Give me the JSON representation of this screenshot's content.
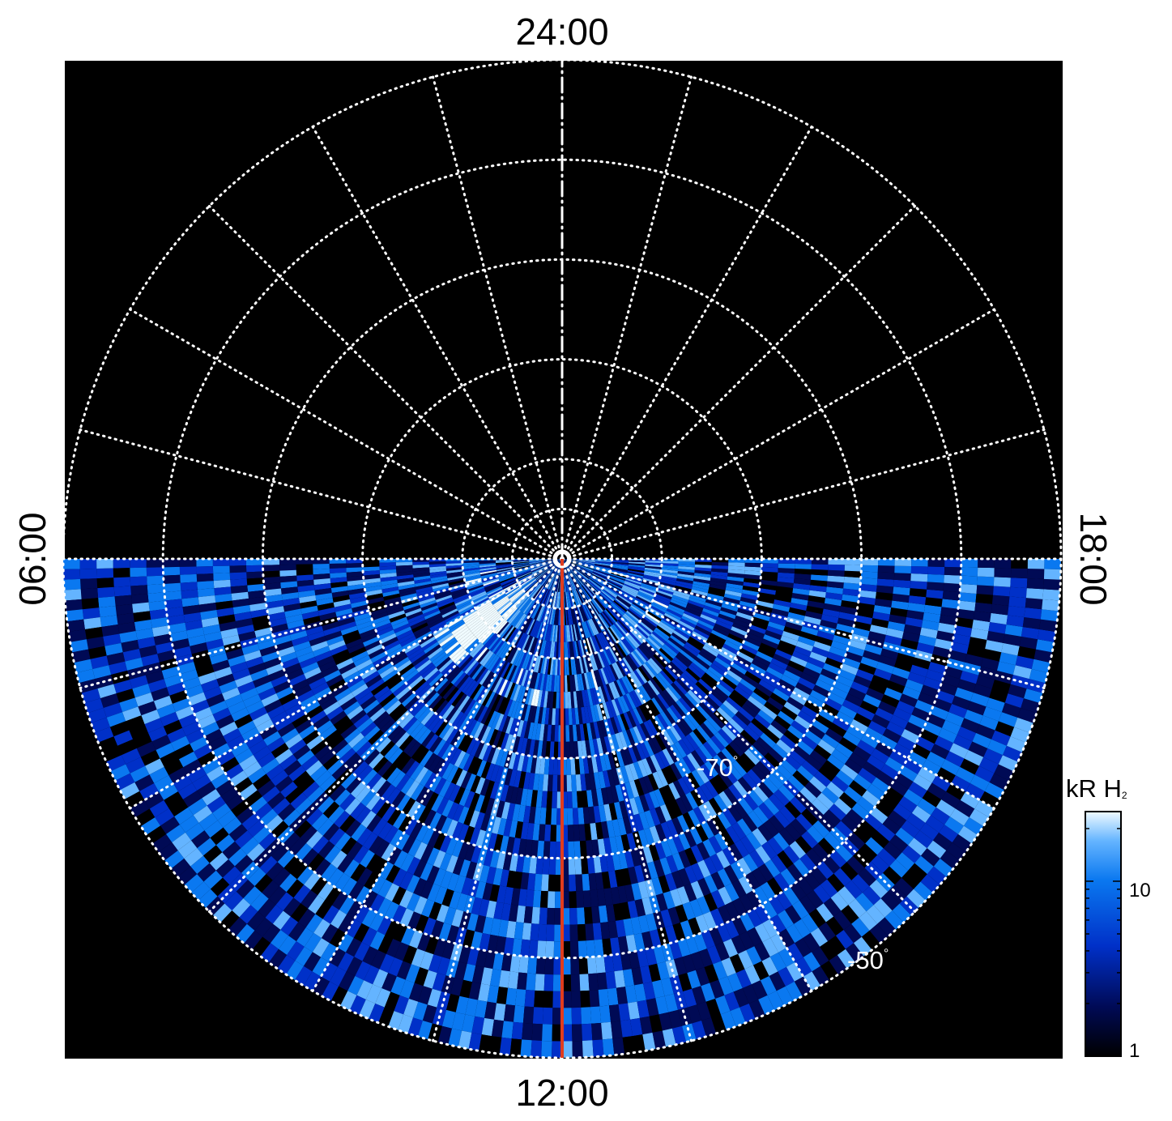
{
  "chart_data": {
    "type": "heatmap",
    "projection": "polar",
    "local_time_labels": {
      "top": "24:00",
      "bottom": "12:00",
      "left": "06:00",
      "right": "18:00"
    },
    "latitude_labels": [
      {
        "text": "-70",
        "value": -70
      },
      {
        "text": "-50",
        "value": -50
      }
    ],
    "latitude_circles_deg": [
      -85,
      -80,
      -70,
      -60,
      -50,
      -40
    ],
    "meridian_spacing_hours": 1,
    "grid": true,
    "coverage": "dayside half (06:00 through 12:00 to 18:00)",
    "colorbar": {
      "title": "kR H",
      "title_subscript": "2",
      "scale": "log",
      "range": [
        1,
        25
      ],
      "tick_labels": [
        {
          "text": "10",
          "value": 10
        },
        {
          "text": "1",
          "value": 1
        }
      ],
      "colors": [
        "#000000",
        "#000a55",
        "#0030c8",
        "#0a78f0",
        "#64b4ff",
        "#f0fbff"
      ]
    },
    "reference_line": {
      "local_time": "12:00",
      "color": "#e03c1e"
    },
    "features": [
      {
        "description": "bright arc",
        "local_time_approx_h": 8.5,
        "latitude_approx_deg": -80
      }
    ],
    "colors": {
      "background": "#000000",
      "grid": "#ffffff",
      "page": "#ffffff"
    }
  }
}
